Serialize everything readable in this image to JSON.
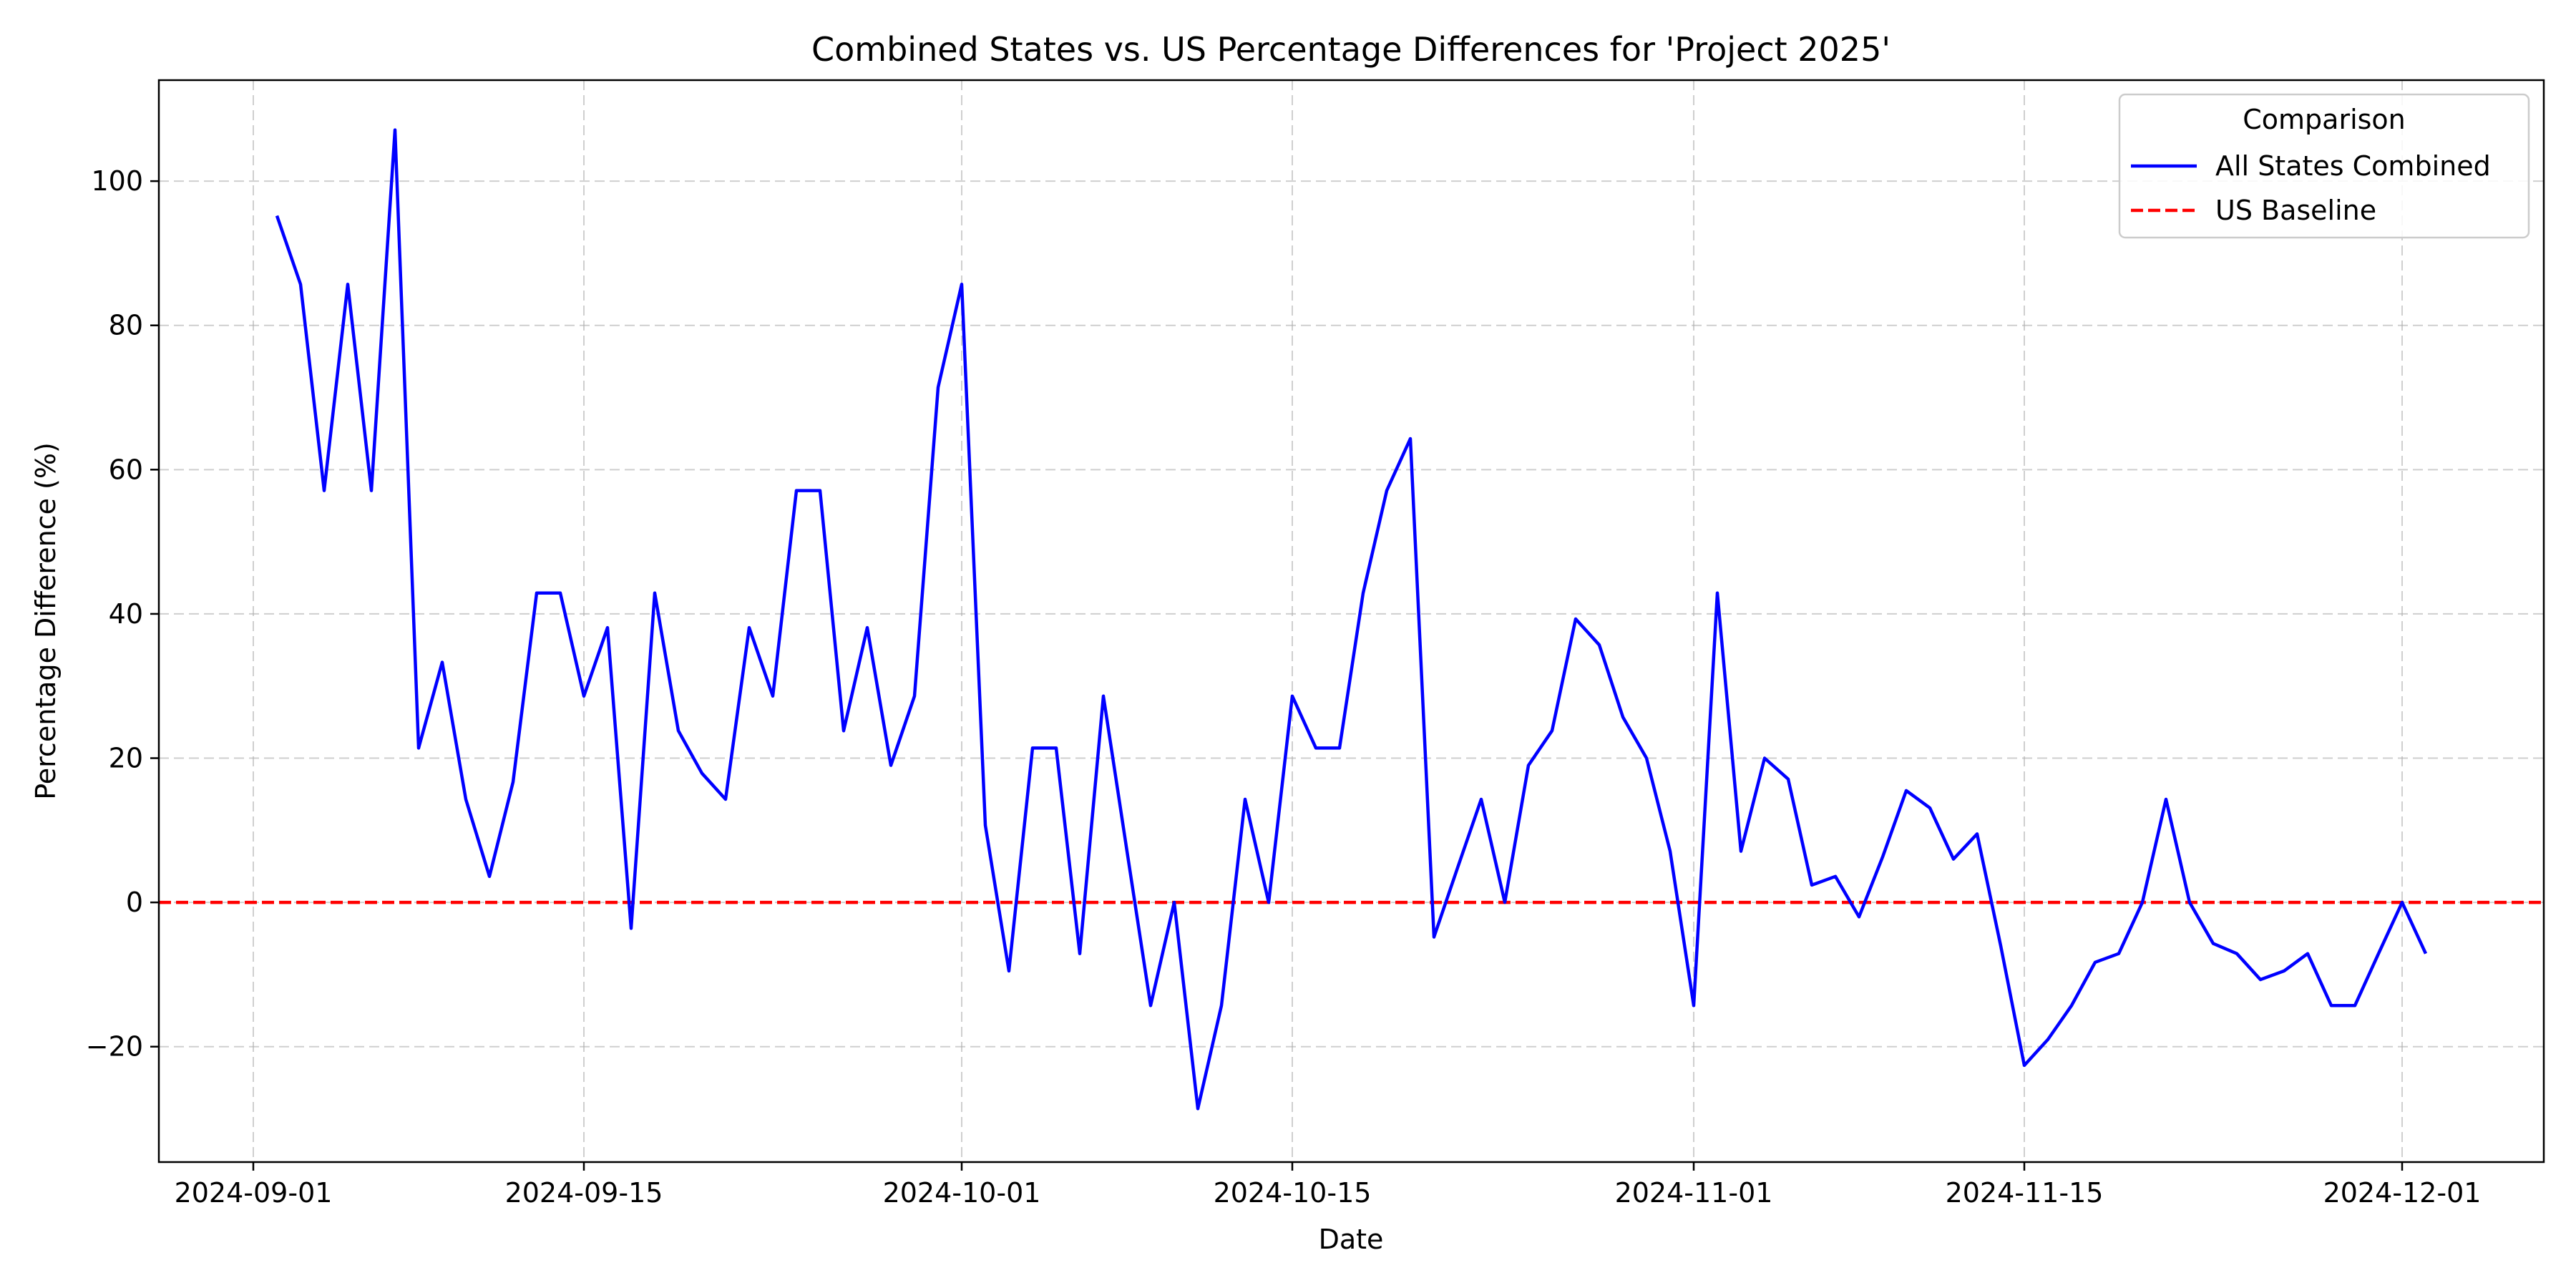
{
  "chart_data": {
    "type": "line",
    "title": "Combined States vs. US Percentage Differences for 'Project 2025'",
    "xlabel": "Date",
    "ylabel": "Percentage Difference (%)",
    "xlim": [
      "2024-08-28",
      "2024-12-07"
    ],
    "ylim": [
      -36,
      114
    ],
    "x_ticks": [
      "2024-09-01",
      "2024-09-15",
      "2024-10-01",
      "2024-10-15",
      "2024-11-01",
      "2024-11-15",
      "2024-12-01"
    ],
    "y_ticks": [
      -20,
      0,
      20,
      40,
      60,
      80,
      100
    ],
    "y_tick_labels": [
      "−20",
      "0",
      "20",
      "40",
      "60",
      "80",
      "100"
    ],
    "grid": true,
    "legend": {
      "title": "Comparison",
      "position": "top-right"
    },
    "series": [
      {
        "name": "All States Combined",
        "color": "#0000ff",
        "style": "solid",
        "x": [
          "2024-09-02",
          "2024-09-03",
          "2024-09-04",
          "2024-09-05",
          "2024-09-06",
          "2024-09-07",
          "2024-09-08",
          "2024-09-09",
          "2024-09-10",
          "2024-09-11",
          "2024-09-12",
          "2024-09-13",
          "2024-09-14",
          "2024-09-15",
          "2024-09-16",
          "2024-09-17",
          "2024-09-18",
          "2024-09-19",
          "2024-09-20",
          "2024-09-21",
          "2024-09-22",
          "2024-09-23",
          "2024-09-24",
          "2024-09-25",
          "2024-09-26",
          "2024-09-27",
          "2024-09-28",
          "2024-09-29",
          "2024-09-30",
          "2024-10-01",
          "2024-10-02",
          "2024-10-03",
          "2024-10-04",
          "2024-10-05",
          "2024-10-06",
          "2024-10-07",
          "2024-10-08",
          "2024-10-09",
          "2024-10-10",
          "2024-10-11",
          "2024-10-12",
          "2024-10-13",
          "2024-10-14",
          "2024-10-15",
          "2024-10-16",
          "2024-10-17",
          "2024-10-18",
          "2024-10-19",
          "2024-10-20",
          "2024-10-21",
          "2024-10-22",
          "2024-10-23",
          "2024-10-24",
          "2024-10-25",
          "2024-10-26",
          "2024-10-27",
          "2024-10-28",
          "2024-10-29",
          "2024-10-30",
          "2024-10-31",
          "2024-11-01",
          "2024-11-02",
          "2024-11-03",
          "2024-11-04",
          "2024-11-05",
          "2024-11-06",
          "2024-11-07",
          "2024-11-08",
          "2024-11-09",
          "2024-11-10",
          "2024-11-11",
          "2024-11-12",
          "2024-11-13",
          "2024-11-14",
          "2024-11-15",
          "2024-11-16",
          "2024-11-17",
          "2024-11-18",
          "2024-11-19",
          "2024-11-20",
          "2024-11-21",
          "2024-11-22",
          "2024-11-23",
          "2024-11-24",
          "2024-11-25",
          "2024-11-26",
          "2024-11-27",
          "2024-11-28",
          "2024-11-29",
          "2024-11-30",
          "2024-12-01",
          "2024-12-02"
        ],
        "y": [
          95.2,
          85.7,
          57.1,
          85.7,
          57.1,
          107.1,
          21.4,
          33.3,
          14.3,
          3.6,
          16.7,
          42.9,
          42.9,
          28.6,
          38.1,
          -3.6,
          42.9,
          23.8,
          17.9,
          14.3,
          38.1,
          28.6,
          57.1,
          57.1,
          23.8,
          38.1,
          19.0,
          28.6,
          71.4,
          85.7,
          10.7,
          -9.5,
          21.4,
          21.4,
          -7.1,
          28.6,
          7.1,
          -14.3,
          0.0,
          -28.6,
          -14.3,
          14.3,
          0.0,
          28.6,
          21.4,
          21.4,
          42.9,
          57.1,
          64.3,
          -4.8,
          4.8,
          14.3,
          0.0,
          19.0,
          23.8,
          39.3,
          35.7,
          25.7,
          20.0,
          7.1,
          -14.3,
          42.9,
          7.1,
          20.0,
          17.1,
          2.4,
          3.6,
          -2.0,
          6.3,
          15.5,
          13.1,
          6.0,
          9.5,
          -6.0,
          -22.6,
          -19.0,
          -14.3,
          -8.3,
          -7.1,
          0.0,
          14.3,
          0.0,
          -5.7,
          -7.1,
          -10.7,
          -9.5,
          -7.1,
          -14.3,
          -14.3,
          -7.1,
          0.0,
          -7.1
        ]
      },
      {
        "name": "US Baseline",
        "color": "#ff0000",
        "style": "dashed",
        "x": [
          "2024-08-28",
          "2024-12-07"
        ],
        "y": [
          0,
          0
        ]
      }
    ]
  }
}
